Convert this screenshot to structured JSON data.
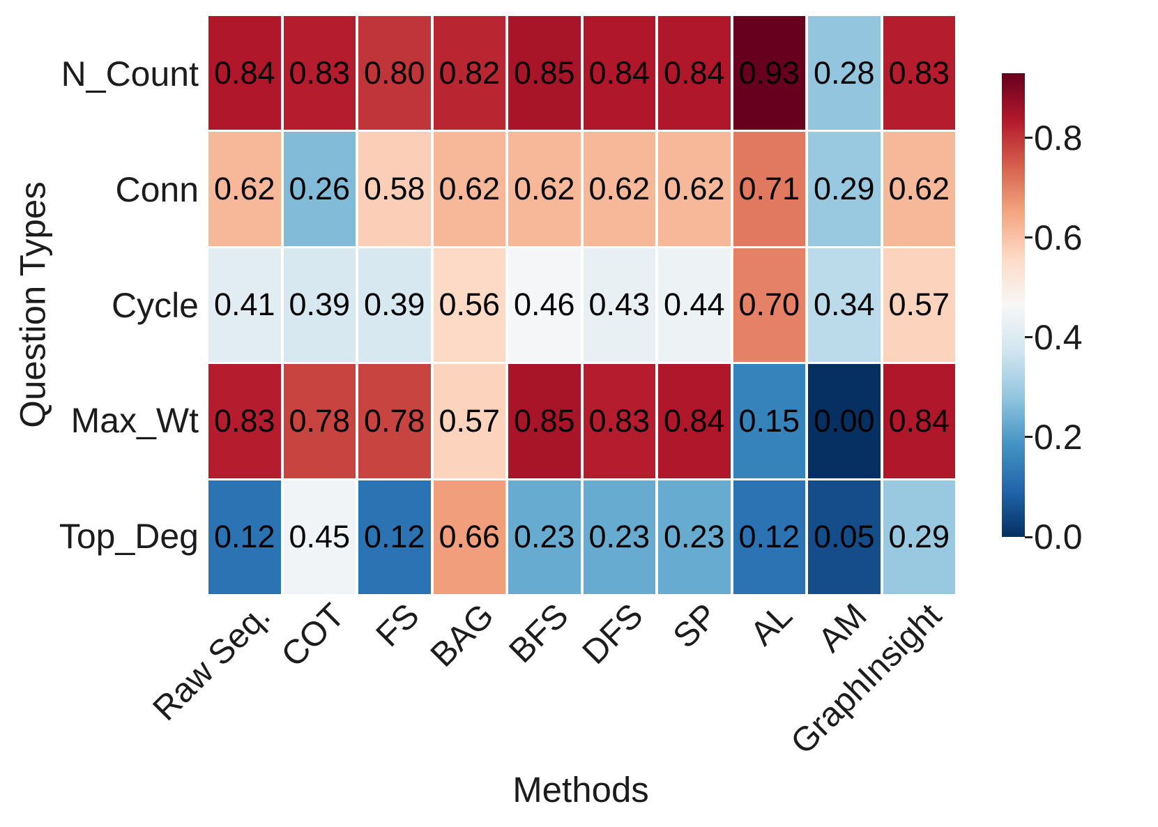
{
  "chart_data": {
    "type": "heatmap",
    "title": "",
    "xlabel": "Methods",
    "ylabel": "Question Types",
    "x_categories": [
      "Raw Seq.",
      "COT",
      "FS",
      "BAG",
      "BFS",
      "DFS",
      "SP",
      "AL",
      "AM",
      "GraphInsight"
    ],
    "y_categories": [
      "N_Count",
      "Conn",
      "Cycle",
      "Max_Wt",
      "Top_Deg"
    ],
    "values": [
      [
        0.84,
        0.83,
        0.8,
        0.82,
        0.85,
        0.84,
        0.84,
        0.93,
        0.28,
        0.83
      ],
      [
        0.62,
        0.26,
        0.58,
        0.62,
        0.62,
        0.62,
        0.62,
        0.71,
        0.29,
        0.62
      ],
      [
        0.41,
        0.39,
        0.39,
        0.56,
        0.46,
        0.43,
        0.44,
        0.7,
        0.34,
        0.57
      ],
      [
        0.83,
        0.78,
        0.78,
        0.57,
        0.85,
        0.83,
        0.84,
        0.15,
        0.0,
        0.84
      ],
      [
        0.12,
        0.45,
        0.12,
        0.66,
        0.23,
        0.23,
        0.23,
        0.12,
        0.05,
        0.29
      ]
    ],
    "annotation_decimals": 2,
    "annotation_color": "#000000",
    "label_color": "#1c1c1c",
    "cell_gap_color": "#ffffff",
    "vmin": 0.0,
    "vmax": 0.93,
    "colormap": {
      "name": "RdBu_r",
      "stops": [
        "#053061",
        "#2166ac",
        "#4393c3",
        "#92c5de",
        "#d1e5f0",
        "#f7f7f7",
        "#fddbc7",
        "#f4a582",
        "#d6604d",
        "#b2182b",
        "#67001f"
      ]
    },
    "colorbar": {
      "tick_values": [
        0.8,
        0.6,
        0.4,
        0.2,
        0.0
      ],
      "tick_labels": [
        "0.8",
        "0.6",
        "0.4",
        "0.2",
        "0.0"
      ]
    },
    "legend": "colorbar-right",
    "grid": false
  }
}
